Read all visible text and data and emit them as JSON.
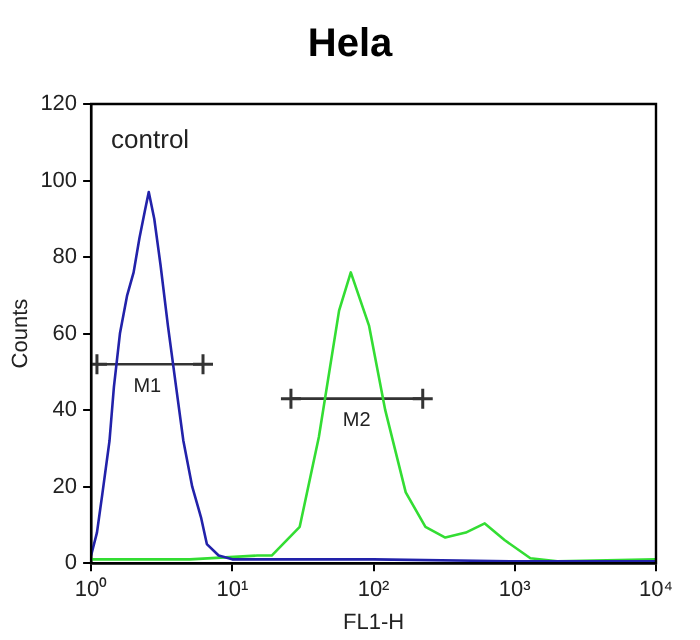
{
  "chart_data": {
    "type": "line",
    "title": "Hela",
    "xlabel": "FL1-H",
    "ylabel": "Counts",
    "log": "x",
    "grid": false,
    "legend": false,
    "marker": "none",
    "line_style": "solid",
    "xlim": [
      1,
      10000
    ],
    "ylim": [
      0,
      120
    ],
    "xticks": [
      {
        "value": 1,
        "label": "10⁰"
      },
      {
        "value": 10,
        "label": "10¹"
      },
      {
        "value": 100,
        "label": "10²"
      },
      {
        "value": 1000,
        "label": "10³"
      },
      {
        "value": 10000,
        "label": "10⁴"
      }
    ],
    "yticks": [
      0,
      20,
      40,
      60,
      80,
      100,
      120
    ],
    "series": [
      {
        "color": "#2222aa",
        "x": [
          1,
          1.1,
          1.2,
          1.35,
          1.45,
          1.6,
          1.8,
          2.0,
          2.2,
          2.4,
          2.56,
          2.8,
          3.1,
          3.5,
          4.0,
          4.5,
          5.2,
          6.0,
          6.6,
          8,
          10,
          20,
          100,
          1000,
          10000
        ],
        "values": [
          2,
          8,
          18,
          32,
          46,
          60,
          70,
          76,
          85,
          92,
          97,
          90,
          78,
          62,
          46,
          32,
          20,
          12,
          5,
          2,
          1,
          1,
          1,
          0.5,
          0.5
        ]
      },
      {
        "color": "#33dd33",
        "x": [
          1,
          5,
          15,
          19,
          30,
          41,
          57,
          69,
          93,
          121,
          169,
          233,
          322,
          450,
          613,
          850,
          1290,
          2000,
          10000
        ],
        "values": [
          1,
          1,
          2,
          2,
          9.5,
          33,
          66,
          76,
          62,
          40,
          18.5,
          9.5,
          6.7,
          8,
          10.4,
          6,
          1.3,
          0.5,
          1
        ]
      },
      {
        "type": "line",
        "marker": "cross",
        "color": "#333333",
        "x": [
          1.1,
          6.2
        ],
        "values": [
          52,
          52
        ]
      },
      {
        "type": "line",
        "marker": "cross",
        "color": "#333333",
        "x": [
          26,
          223
        ],
        "values": [
          43,
          43
        ]
      }
    ],
    "annotations": [
      "control",
      {
        "text": "M1",
        "x": 2.5,
        "y": 52
      },
      {
        "text": "M2",
        "x": 76,
        "y": 43
      }
    ]
  }
}
